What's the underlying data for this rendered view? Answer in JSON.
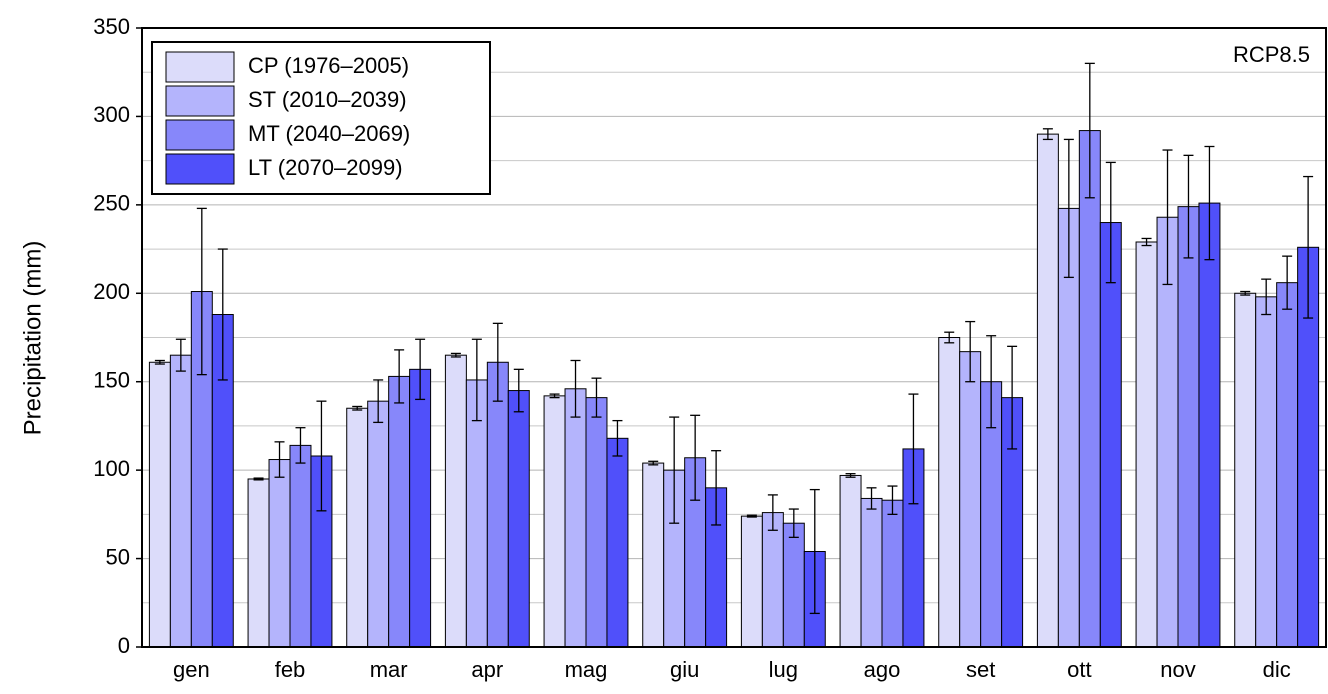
{
  "chart_data": {
    "type": "bar",
    "annotation": "RCP8.5",
    "y_label": "Precipitation (mm)",
    "categories": [
      "gen",
      "feb",
      "mar",
      "apr",
      "mag",
      "giu",
      "lug",
      "ago",
      "set",
      "ott",
      "nov",
      "dic"
    ],
    "series": [
      {
        "name": "CP (1976–2005)",
        "color": "#dcdcfa",
        "values": [
          161,
          95,
          135,
          165,
          142,
          104,
          74,
          97,
          175,
          290,
          229,
          200
        ],
        "errors": [
          1,
          0.5,
          1,
          1,
          1,
          1,
          0.5,
          1,
          3,
          3,
          2,
          1
        ]
      },
      {
        "name": "ST (2010–2039)",
        "color": "#b4b4fc",
        "values": [
          165,
          106,
          139,
          151,
          146,
          100,
          76,
          84,
          167,
          248,
          243,
          198
        ],
        "errors": [
          9,
          10,
          12,
          23,
          16,
          30,
          10,
          6,
          17,
          39,
          38,
          10
        ]
      },
      {
        "name": "MT (2040–2069)",
        "color": "#8787fa",
        "values": [
          201,
          114,
          153,
          161,
          141,
          107,
          70,
          83,
          150,
          292,
          249,
          206
        ],
        "errors": [
          47,
          10,
          15,
          22,
          11,
          24,
          8,
          8,
          26,
          38,
          29,
          15
        ]
      },
      {
        "name": "LT (2070–2099)",
        "color": "#5050fa",
        "values": [
          188,
          108,
          157,
          145,
          118,
          90,
          54,
          112,
          141,
          240,
          251,
          226
        ],
        "errors": [
          37,
          31,
          17,
          12,
          10,
          21,
          35,
          31,
          29,
          34,
          32,
          40
        ]
      }
    ],
    "ylim": [
      0,
      350
    ],
    "yticks": [
      0,
      50,
      100,
      150,
      200,
      250,
      300,
      350
    ],
    "minor_yticks": [
      25,
      75,
      125,
      175,
      225,
      275,
      325
    ],
    "grid": true,
    "legend": "upper left"
  }
}
